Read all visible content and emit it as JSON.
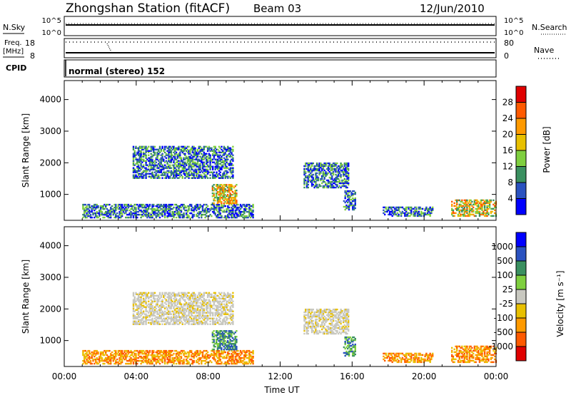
{
  "header": {
    "title": "Zhongshan Station (fitACF)",
    "beam": "Beam 03",
    "date": "12/Jun/2010"
  },
  "status_panels": {
    "nsky_label": "N.Sky",
    "nsky_ticks": [
      "10^5",
      "10^0"
    ],
    "nsearch_label": "N.Search",
    "nsearch_ticks": [
      "10^5",
      "10^0"
    ],
    "freq_label": "Freq.",
    "freq_unit": "[MHz]",
    "freq_ticks": [
      "18",
      "8"
    ],
    "nave_label": "Nave",
    "nave_ticks": [
      "80",
      "0"
    ],
    "cpid_label": "CPID",
    "cpid_text": "normal (stereo) 152"
  },
  "chart_data": [
    {
      "type": "heatmap",
      "name": "power",
      "ylabel": "Slant Range [km]",
      "yticks": [
        "4000",
        "3000",
        "2000",
        "1000"
      ],
      "ylim": [
        180,
        4600
      ],
      "xlim": [
        0,
        24
      ],
      "colorbar": {
        "label": "Power [dB]",
        "ticks": [
          "28",
          "24",
          "20",
          "16",
          "12",
          "8",
          "4"
        ],
        "colors": [
          "#0000ff",
          "#2a52c0",
          "#3a9060",
          "#7fcf3f",
          "#e8c000",
          "#ff9a00",
          "#ff5a00",
          "#e00000"
        ],
        "range": [
          0,
          32
        ]
      },
      "echo_regions": [
        {
          "t": [
            1.0,
            10.5
          ],
          "r": [
            250,
            700
          ],
          "level": "mixed"
        },
        {
          "t": [
            3.8,
            9.4
          ],
          "r": [
            1500,
            2500
          ],
          "level": "mixed"
        },
        {
          "t": [
            8.2,
            9.6
          ],
          "r": [
            700,
            1300
          ],
          "level": "high"
        },
        {
          "t": [
            13.3,
            15.8
          ],
          "r": [
            1200,
            2000
          ],
          "level": "mixed"
        },
        {
          "t": [
            15.5,
            16.2
          ],
          "r": [
            500,
            1100
          ],
          "level": "mixed"
        },
        {
          "t": [
            17.7,
            20.5
          ],
          "r": [
            300,
            600
          ],
          "level": "mixed"
        },
        {
          "t": [
            21.5,
            24.0
          ],
          "r": [
            300,
            800
          ],
          "level": "high"
        }
      ]
    },
    {
      "type": "heatmap",
      "name": "velocity",
      "ylabel": "Slant Range [km]",
      "yticks": [
        "4000",
        "3000",
        "2000",
        "1000"
      ],
      "ylim": [
        180,
        4600
      ],
      "xlim": [
        0,
        24
      ],
      "xticks": [
        "00:00",
        "04:00",
        "08:00",
        "12:00",
        "16:00",
        "20:00",
        "00:00"
      ],
      "xlabel": "Time UT",
      "colorbar": {
        "label": "Velocity [m s⁻¹]",
        "ticks": [
          "1000",
          "500",
          "100",
          "25",
          "-25",
          "-100",
          "-500",
          "-1000"
        ],
        "colors": [
          "#e00000",
          "#ff5a00",
          "#ff9a00",
          "#e8c000",
          "#c8c8c0",
          "#7fcf3f",
          "#3a9060",
          "#2a52c0",
          "#0000ff"
        ],
        "range": [
          -1200,
          1200
        ]
      },
      "echo_regions": [
        {
          "t": [
            1.0,
            10.5
          ],
          "r": [
            250,
            700
          ],
          "level": "negative"
        },
        {
          "t": [
            3.8,
            9.4
          ],
          "r": [
            1500,
            2500
          ],
          "level": "near-zero"
        },
        {
          "t": [
            8.2,
            9.6
          ],
          "r": [
            700,
            1300
          ],
          "level": "positive"
        },
        {
          "t": [
            13.3,
            15.8
          ],
          "r": [
            1200,
            2000
          ],
          "level": "near-zero"
        },
        {
          "t": [
            15.5,
            16.2
          ],
          "r": [
            500,
            1100
          ],
          "level": "positive"
        },
        {
          "t": [
            17.7,
            20.5
          ],
          "r": [
            300,
            600
          ],
          "level": "negative"
        },
        {
          "t": [
            21.5,
            24.0
          ],
          "r": [
            300,
            800
          ],
          "level": "negative"
        }
      ]
    }
  ]
}
